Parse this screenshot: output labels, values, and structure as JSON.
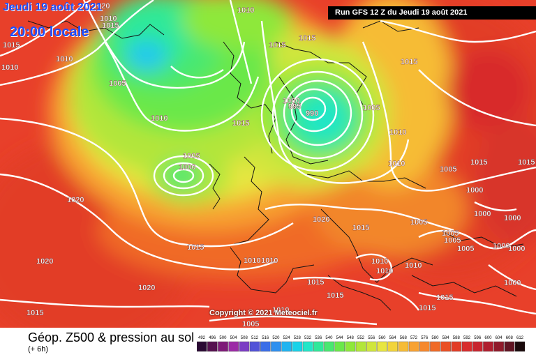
{
  "header": {
    "date_label": "Jeudi 19 août 2021",
    "time_label": "20:00 locale",
    "run_label": "Run GFS 12 Z du Jeudi 19 août 2021"
  },
  "copyright": "Copyright © 2021 Meteociel.fr",
  "footer": {
    "title": "Géop. Z500 & pression au sol",
    "subtitle": "(+ 6h)"
  },
  "legend_scale": {
    "values": [
      "492",
      "496",
      "500",
      "504",
      "508",
      "512",
      "516",
      "520",
      "524",
      "528",
      "532",
      "536",
      "540",
      "544",
      "548",
      "552",
      "556",
      "560",
      "564",
      "568",
      "572",
      "576",
      "580",
      "584",
      "588",
      "592",
      "596",
      "600",
      "604",
      "608",
      "612"
    ],
    "colors": [
      "#2a0a33",
      "#55114f",
      "#7e1a78",
      "#9c2aa6",
      "#7b3cc4",
      "#5252d8",
      "#3a6ee8",
      "#2e90f0",
      "#21b4f0",
      "#19d2e8",
      "#22e6c8",
      "#2fe89a",
      "#48e870",
      "#6ae84a",
      "#8ee83a",
      "#b2e63a",
      "#d0e63c",
      "#e8e640",
      "#f2d43a",
      "#f6bc36",
      "#f8a232",
      "#f6882c",
      "#f06a26",
      "#ea5024",
      "#e23c26",
      "#d82c2c",
      "#c8242e",
      "#b01e2e",
      "#901a2a",
      "#601422",
      "#1a0a0c"
    ]
  },
  "isobar_labels": [
    {
      "text": "1010"
    },
    {
      "text": "1020"
    },
    {
      "text": "1015"
    },
    {
      "text": "1015"
    },
    {
      "text": "1015"
    },
    {
      "text": "1010"
    },
    {
      "text": "1010"
    },
    {
      "text": "1010"
    },
    {
      "text": "1005"
    },
    {
      "text": "1010"
    },
    {
      "text": "1015"
    },
    {
      "text": "1005"
    },
    {
      "text": "1000"
    },
    {
      "text": "1015"
    },
    {
      "text": "1015"
    },
    {
      "text": "1000"
    },
    {
      "text": "995"
    },
    {
      "text": "990"
    },
    {
      "text": "1005"
    },
    {
      "text": "1010"
    },
    {
      "text": "1010"
    },
    {
      "text": "1015"
    },
    {
      "text": "1005"
    },
    {
      "text": "1000"
    },
    {
      "text": "1000"
    },
    {
      "text": "1000"
    },
    {
      "text": "1000"
    },
    {
      "text": "1005"
    },
    {
      "text": "1000"
    },
    {
      "text": "1005"
    },
    {
      "text": "1010"
    },
    {
      "text": "1010"
    },
    {
      "text": "1020"
    },
    {
      "text": "1015"
    },
    {
      "text": "1020"
    },
    {
      "text": "1020"
    },
    {
      "text": "1015"
    },
    {
      "text": "1010"
    },
    {
      "text": "1005"
    },
    {
      "text": "1005"
    },
    {
      "text": "1015"
    },
    {
      "text": "1020"
    },
    {
      "text": "1010"
    },
    {
      "text": "1005"
    },
    {
      "text": "1015"
    },
    {
      "text": "1015"
    },
    {
      "text": "1015"
    },
    {
      "text": "1010"
    },
    {
      "text": "1015"
    },
    {
      "text": "1010"
    },
    {
      "text": "1015"
    },
    {
      "text": "1000"
    }
  ]
}
